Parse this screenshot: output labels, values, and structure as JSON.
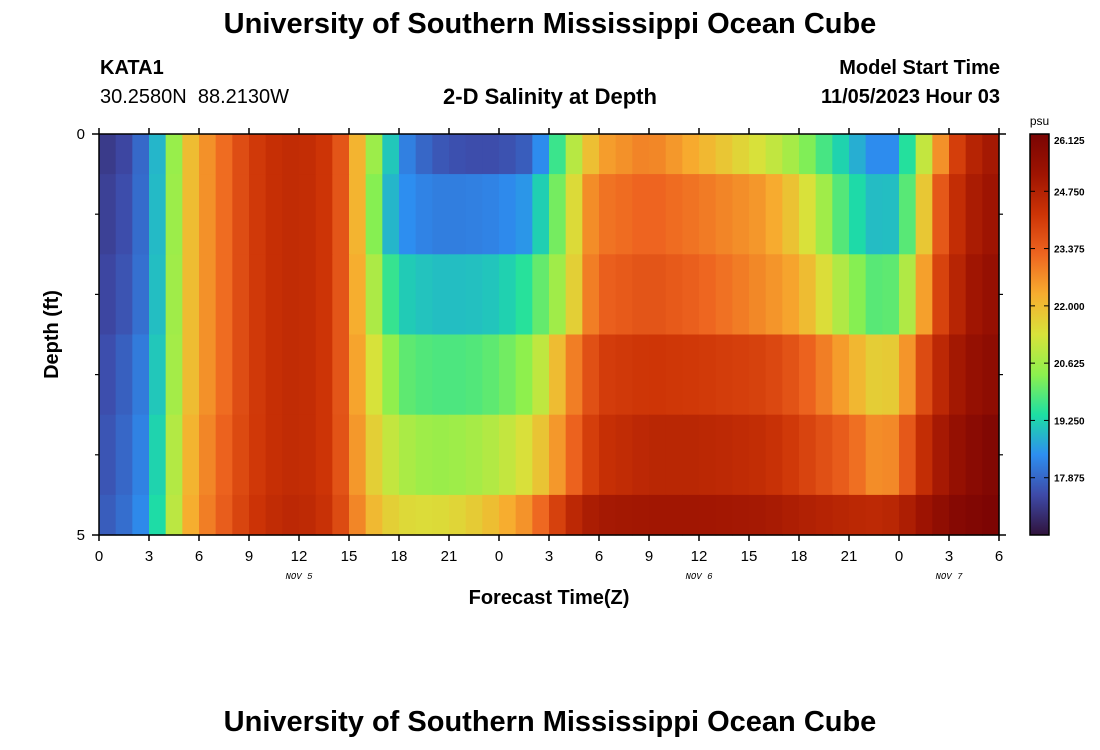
{
  "header": {
    "main_title": "University of Southern Mississippi Ocean Cube",
    "station_id": "KATA1",
    "station_coords": "30.2580N  88.2130W",
    "plot_title": "2-D Salinity at Depth",
    "model_label": "Model Start Time",
    "model_time": "11/05/2023 Hour 03"
  },
  "footer": {
    "title": "University of Southern Mississippi Ocean Cube"
  },
  "chart_data": {
    "type": "heatmap",
    "title": "2-D Salinity at Depth",
    "xlabel": "Forecast Time(Z)",
    "ylabel": "Depth (ft)",
    "x_tick_labels": [
      "0",
      "3",
      "6",
      "9",
      "12",
      "15",
      "18",
      "21",
      "0",
      "3",
      "6",
      "9",
      "12",
      "15",
      "18",
      "21",
      "0",
      "3",
      "6"
    ],
    "date_labels": [
      {
        "label": "NOV 5",
        "hour": 12
      },
      {
        "label": "NOV 6",
        "hour": 36
      },
      {
        "label": "NOV 7",
        "hour": 51
      }
    ],
    "x_range_hours": [
      0,
      54
    ],
    "y_tick_labels": [
      "0",
      "5"
    ],
    "y_range_ft": [
      0,
      5
    ],
    "y_minor_ticks_ft": [
      1,
      2,
      3,
      4
    ],
    "colorbar": {
      "unit": "psu",
      "min": 16.5,
      "max": 26.125,
      "tick_labels": [
        "17.875",
        "19.250",
        "20.625",
        "22.000",
        "23.375",
        "24.750",
        "26.125"
      ],
      "tick_values": [
        17.875,
        19.25,
        20.625,
        22.0,
        23.375,
        24.75,
        26.125
      ],
      "colors": [
        "#30123b",
        "#3e4aa8",
        "#2d8ef0",
        "#1ddfa3",
        "#8cf04e",
        "#d8e23a",
        "#f7ad2f",
        "#ee6520",
        "#cd3406",
        "#9e1402",
        "#7a0403"
      ]
    },
    "depth_bins_ft": [
      [
        0,
        0.5
      ],
      [
        0.5,
        1.5
      ],
      [
        1.5,
        2.5
      ],
      [
        2.5,
        3.5
      ],
      [
        3.5,
        4.5
      ],
      [
        4.5,
        5
      ]
    ],
    "hours_keypoints": [
      0,
      2,
      3,
      4,
      5,
      6,
      7,
      8,
      10,
      12,
      14,
      15,
      16,
      17,
      18,
      20,
      22,
      24,
      26,
      27,
      28,
      29,
      30,
      33,
      36,
      40,
      42,
      45,
      47,
      48,
      49,
      50,
      51,
      52,
      54
    ],
    "salinity_psu": [
      [
        17.1,
        17.5,
        18.3,
        19.5,
        21.5,
        22.5,
        22.8,
        23.5,
        24.3,
        24.5,
        24.1,
        23.0,
        21.3,
        19.8,
        18.4,
        17.7,
        17.5,
        17.5,
        17.8,
        19.0,
        20.3,
        21.5,
        22.4,
        22.9,
        22.2,
        21.2,
        20.5,
        19.0,
        18.2,
        18.6,
        20.3,
        21.8,
        23.5,
        24.5,
        25.2
      ],
      [
        17.2,
        17.6,
        18.3,
        19.6,
        21.5,
        22.5,
        22.8,
        23.5,
        24.3,
        24.5,
        24.1,
        23.0,
        21.3,
        19.3,
        18.5,
        18.2,
        18.2,
        18.3,
        18.6,
        19.8,
        20.5,
        22.4,
        23.0,
        23.3,
        23.0,
        22.5,
        21.7,
        19.5,
        18.8,
        19.2,
        20.6,
        23.0,
        24.0,
        24.8,
        25.3
      ],
      [
        17.3,
        17.7,
        18.3,
        19.7,
        21.5,
        22.5,
        22.8,
        23.5,
        24.3,
        24.5,
        24.1,
        23.0,
        21.5,
        20.0,
        19.2,
        19.0,
        19.0,
        19.1,
        19.6,
        20.4,
        20.8,
        22.5,
        23.3,
        23.6,
        23.3,
        22.7,
        22.3,
        20.5,
        19.7,
        20.2,
        21.4,
        23.5,
        24.3,
        25.0,
        25.5
      ],
      [
        17.4,
        17.9,
        18.4,
        19.8,
        21.5,
        22.5,
        22.8,
        23.5,
        24.3,
        24.5,
        24.1,
        23.0,
        21.8,
        20.8,
        20.0,
        19.8,
        19.8,
        20.0,
        20.5,
        21.5,
        22.5,
        23.3,
        24.0,
        24.2,
        24.1,
        23.9,
        23.5,
        22.3,
        21.5,
        22.0,
        23.2,
        24.3,
        24.8,
        25.3,
        25.7
      ],
      [
        17.5,
        18.0,
        18.5,
        20.0,
        21.7,
        22.6,
        23.0,
        23.6,
        24.3,
        24.5,
        24.1,
        23.1,
        22.0,
        21.3,
        20.8,
        20.5,
        20.6,
        20.9,
        21.5,
        22.2,
        22.9,
        23.7,
        24.3,
        24.6,
        24.6,
        24.4,
        24.0,
        23.3,
        22.5,
        23.0,
        24.0,
        24.8,
        25.2,
        25.6,
        26.0
      ],
      [
        17.6,
        18.1,
        18.6,
        20.1,
        21.8,
        22.7,
        23.1,
        23.7,
        24.4,
        24.6,
        24.2,
        23.3,
        22.3,
        21.8,
        21.5,
        21.4,
        21.6,
        22.1,
        22.8,
        23.6,
        24.3,
        24.8,
        25.0,
        25.1,
        25.1,
        25.0,
        24.8,
        24.6,
        24.5,
        24.7,
        25.0,
        25.4,
        25.7,
        25.9,
        26.1
      ]
    ]
  }
}
